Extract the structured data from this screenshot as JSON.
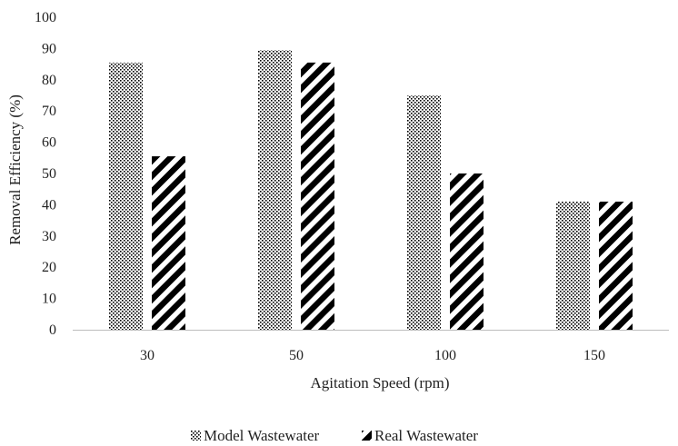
{
  "chart_data": {
    "type": "bar",
    "categories": [
      "30",
      "50",
      "100",
      "150"
    ],
    "series": [
      {
        "name": "Model Wastewater",
        "values": [
          85.5,
          89.5,
          75,
          41
        ],
        "pattern": "dots"
      },
      {
        "name": "Real Wastewater",
        "values": [
          55.5,
          85.5,
          50,
          41
        ],
        "pattern": "diagonal-stripes"
      }
    ],
    "xlabel": "Agitation  Speed (rpm)",
    "ylabel": "Removal Efficiency  (%)",
    "ylim": [
      0,
      100
    ],
    "yticks": [
      0,
      10,
      20,
      30,
      40,
      50,
      60,
      70,
      80,
      90,
      100
    ],
    "grid": false,
    "legend_position": "bottom"
  }
}
